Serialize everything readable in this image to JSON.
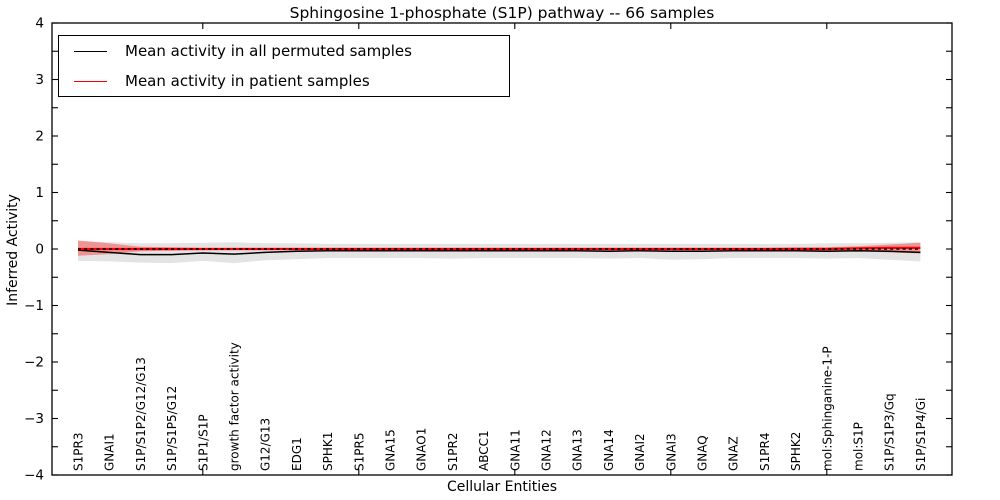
{
  "chart_data": {
    "type": "line",
    "title": "Sphingosine 1-phosphate (S1P) pathway -- 66 samples",
    "xlabel": "Cellular Entities",
    "ylabel": "Inferred Activity",
    "ylim": [
      -4,
      4
    ],
    "ytick_major_step": 1,
    "ytick_minor_step": 0.5,
    "xtick_indices": [
      4,
      9,
      14,
      19,
      24
    ],
    "grid": false,
    "legend_position": "upper-left",
    "categories": [
      "S1PR3",
      "GNAI1",
      "S1P/S1P2/G12/G13",
      "S1P/S1P5/G12",
      "S1P1/S1P",
      "growth factor activity",
      "G12/G13",
      "EDG1",
      "SPHK1",
      "S1PR5",
      "GNA15",
      "GNAO1",
      "S1PR2",
      "ABCC1",
      "GNA11",
      "GNA12",
      "GNA13",
      "GNA14",
      "GNAI2",
      "GNAI3",
      "GNAQ",
      "GNAZ",
      "S1PR4",
      "SPHK2",
      "mol:Sphinganine-1-P",
      "mol:S1P",
      "S1P/S1P3/Gq",
      "S1P/S1P4/Gi"
    ],
    "series": [
      {
        "name": "Mean activity in all permuted samples",
        "color": "#000000",
        "line_width": 1.5,
        "band_color": "#999999",
        "band_opacity": 0.28,
        "values": [
          -0.02,
          -0.06,
          -0.1,
          -0.1,
          -0.07,
          -0.09,
          -0.06,
          -0.04,
          -0.03,
          -0.03,
          -0.03,
          -0.03,
          -0.03,
          -0.03,
          -0.03,
          -0.03,
          -0.03,
          -0.04,
          -0.03,
          -0.04,
          -0.04,
          -0.03,
          -0.03,
          -0.03,
          -0.04,
          -0.03,
          -0.04,
          -0.06
        ],
        "band_upper": [
          0.14,
          0.12,
          0.1,
          0.1,
          0.11,
          0.12,
          0.1,
          0.1,
          0.09,
          0.09,
          0.09,
          0.09,
          0.09,
          0.09,
          0.09,
          0.09,
          0.09,
          0.09,
          0.09,
          0.09,
          0.09,
          0.09,
          0.09,
          0.09,
          0.1,
          0.1,
          0.11,
          0.12
        ],
        "band_lower": [
          -0.21,
          -0.22,
          -0.24,
          -0.25,
          -0.21,
          -0.25,
          -0.2,
          -0.18,
          -0.16,
          -0.16,
          -0.16,
          -0.16,
          -0.17,
          -0.16,
          -0.16,
          -0.16,
          -0.16,
          -0.17,
          -0.16,
          -0.19,
          -0.18,
          -0.16,
          -0.16,
          -0.16,
          -0.17,
          -0.16,
          -0.19,
          -0.22
        ]
      },
      {
        "name": "Mean activity in patient samples",
        "color": "#ff0000",
        "line_width": 2.2,
        "band_color": "#ff0000",
        "band_opacity": 0.35,
        "values": [
          0,
          0,
          0,
          0,
          0,
          0,
          0,
          0,
          0,
          0,
          0,
          0,
          0,
          0,
          0,
          0,
          0,
          0,
          0,
          0,
          0,
          0,
          0,
          0,
          0,
          0.01,
          0.02,
          0.02
        ],
        "band_upper": [
          0.15,
          0.1,
          0.04,
          0.03,
          0.02,
          0.02,
          0.02,
          0.02,
          0.02,
          0.02,
          0.02,
          0.02,
          0.02,
          0.02,
          0.02,
          0.02,
          0.02,
          0.02,
          0.02,
          0.02,
          0.02,
          0.02,
          0.02,
          0.03,
          0.03,
          0.05,
          0.08,
          0.11
        ],
        "band_lower": [
          -0.12,
          -0.09,
          -0.04,
          -0.03,
          -0.02,
          -0.02,
          -0.02,
          -0.02,
          -0.02,
          -0.02,
          -0.02,
          -0.02,
          -0.02,
          -0.02,
          -0.02,
          -0.02,
          -0.02,
          -0.02,
          -0.02,
          -0.02,
          -0.02,
          -0.02,
          -0.02,
          -0.03,
          -0.03,
          -0.04,
          -0.06,
          -0.08
        ]
      }
    ],
    "zero_line": {
      "value": 0,
      "color": "#000000",
      "style": "dashed"
    },
    "legend": [
      {
        "label": "Mean activity in all permuted samples",
        "color": "#000000"
      },
      {
        "label": "Mean activity in patient samples",
        "color": "#ff0000"
      }
    ]
  }
}
